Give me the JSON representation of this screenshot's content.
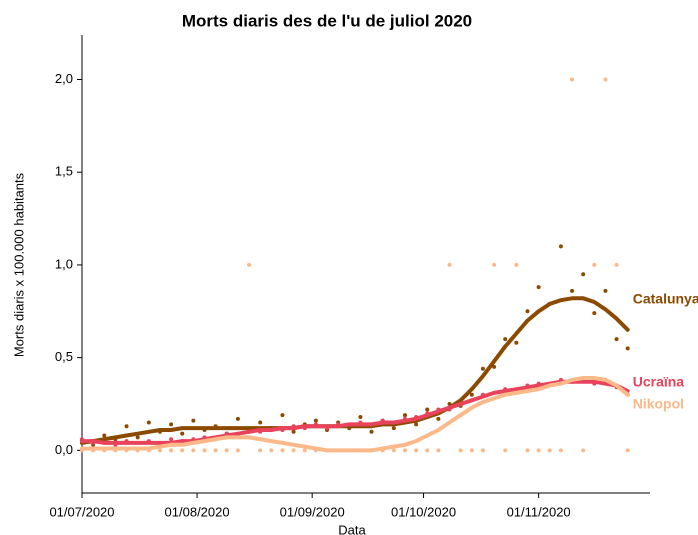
{
  "chart_data": {
    "type": "scatter",
    "title": "Morts diaris des de l'u de juliol 2020",
    "xlabel": "Data",
    "ylabel": "Morts diaris x 100.000 habitants",
    "x": [
      "2020-07-01",
      "2020-07-04",
      "2020-07-07",
      "2020-07-10",
      "2020-07-13",
      "2020-07-16",
      "2020-07-19",
      "2020-07-22",
      "2020-07-25",
      "2020-07-28",
      "2020-07-31",
      "2020-08-03",
      "2020-08-06",
      "2020-08-09",
      "2020-08-12",
      "2020-08-15",
      "2020-08-18",
      "2020-08-21",
      "2020-08-24",
      "2020-08-27",
      "2020-08-30",
      "2020-09-02",
      "2020-09-05",
      "2020-09-08",
      "2020-09-11",
      "2020-09-14",
      "2020-09-17",
      "2020-09-20",
      "2020-09-23",
      "2020-09-26",
      "2020-09-29",
      "2020-10-02",
      "2020-10-05",
      "2020-10-08",
      "2020-10-11",
      "2020-10-14",
      "2020-10-17",
      "2020-10-20",
      "2020-10-23",
      "2020-10-26",
      "2020-10-29",
      "2020-11-01",
      "2020-11-04",
      "2020-11-07",
      "2020-11-10",
      "2020-11-13",
      "2020-11-16",
      "2020-11-19",
      "2020-11-22",
      "2020-11-25"
    ],
    "series": [
      {
        "name": "Catalunya",
        "color": "#8b4a00",
        "values": [
          0.05,
          0.03,
          0.08,
          0.06,
          0.13,
          0.07,
          0.15,
          0.1,
          0.14,
          0.09,
          0.16,
          0.11,
          0.13,
          0.09,
          0.17,
          0.1,
          0.15,
          0.12,
          0.19,
          0.1,
          0.14,
          0.16,
          0.11,
          0.15,
          0.12,
          0.18,
          0.1,
          0.16,
          0.12,
          0.19,
          0.14,
          0.22,
          0.17,
          0.25,
          0.24,
          0.3,
          0.44,
          0.45,
          0.6,
          0.58,
          0.75,
          0.88,
          0.79,
          1.1,
          0.86,
          0.95,
          0.74,
          0.86,
          0.6,
          0.55
        ],
        "trend": [
          0.04,
          0.05,
          0.06,
          0.07,
          0.08,
          0.09,
          0.1,
          0.11,
          0.11,
          0.12,
          0.12,
          0.12,
          0.12,
          0.12,
          0.12,
          0.12,
          0.12,
          0.12,
          0.12,
          0.12,
          0.13,
          0.13,
          0.13,
          0.13,
          0.13,
          0.13,
          0.13,
          0.14,
          0.14,
          0.15,
          0.16,
          0.18,
          0.2,
          0.23,
          0.27,
          0.33,
          0.4,
          0.48,
          0.56,
          0.63,
          0.7,
          0.75,
          0.79,
          0.81,
          0.82,
          0.82,
          0.8,
          0.76,
          0.71,
          0.65
        ]
      },
      {
        "name": "Ucraïna",
        "color": "#e8435a",
        "values": [
          0.06,
          0.04,
          0.05,
          0.03,
          0.05,
          0.04,
          0.05,
          0.03,
          0.06,
          0.05,
          0.06,
          0.07,
          0.06,
          0.09,
          0.08,
          0.11,
          0.1,
          0.12,
          0.11,
          0.13,
          0.12,
          0.14,
          0.12,
          0.14,
          0.13,
          0.15,
          0.13,
          0.16,
          0.15,
          0.17,
          0.18,
          0.2,
          0.22,
          0.22,
          0.26,
          0.27,
          0.3,
          0.31,
          0.33,
          0.32,
          0.35,
          0.36,
          0.35,
          0.38,
          0.37,
          0.39,
          0.36,
          0.38,
          0.34,
          0.3
        ],
        "trend": [
          0.05,
          0.05,
          0.04,
          0.04,
          0.04,
          0.04,
          0.04,
          0.04,
          0.04,
          0.05,
          0.05,
          0.06,
          0.07,
          0.08,
          0.09,
          0.1,
          0.11,
          0.11,
          0.12,
          0.12,
          0.13,
          0.13,
          0.13,
          0.13,
          0.14,
          0.14,
          0.14,
          0.15,
          0.15,
          0.16,
          0.17,
          0.19,
          0.21,
          0.23,
          0.25,
          0.27,
          0.29,
          0.31,
          0.32,
          0.33,
          0.34,
          0.35,
          0.36,
          0.37,
          0.37,
          0.37,
          0.37,
          0.36,
          0.35,
          0.32
        ]
      },
      {
        "name": "Nikopol",
        "color": "#fbb98a",
        "values": [
          0,
          0,
          0,
          0,
          0,
          0,
          0,
          0,
          0,
          0,
          0,
          0,
          0,
          0,
          0,
          1.0,
          0,
          0,
          0,
          0,
          0,
          0,
          0,
          0,
          0,
          0,
          0,
          0,
          0,
          0,
          0,
          0,
          0,
          1.0,
          0,
          0,
          0,
          1.0,
          0,
          1.0,
          0,
          0,
          0,
          0,
          2.0,
          0,
          1.0,
          2.0,
          1.0,
          0
        ],
        "trend": [
          0.01,
          0.01,
          0.01,
          0.01,
          0.01,
          0.01,
          0.01,
          0.02,
          0.03,
          0.03,
          0.04,
          0.05,
          0.06,
          0.07,
          0.07,
          0.07,
          0.06,
          0.05,
          0.04,
          0.03,
          0.02,
          0.01,
          0.0,
          0.0,
          0.0,
          0.0,
          0.0,
          0.01,
          0.02,
          0.03,
          0.05,
          0.08,
          0.11,
          0.15,
          0.19,
          0.23,
          0.26,
          0.28,
          0.3,
          0.31,
          0.32,
          0.33,
          0.35,
          0.36,
          0.38,
          0.39,
          0.39,
          0.38,
          0.35,
          0.3
        ]
      }
    ],
    "xlim": [
      "2020-07-01",
      "2020-12-01"
    ],
    "xticks": [
      {
        "value": "2020-07-01",
        "label": "01/07/2020"
      },
      {
        "value": "2020-08-01",
        "label": "01/08/2020"
      },
      {
        "value": "2020-09-01",
        "label": "01/09/2020"
      },
      {
        "value": "2020-10-01",
        "label": "01/10/2020"
      },
      {
        "value": "2020-11-01",
        "label": "01/11/2020"
      }
    ],
    "ylim": [
      -0.23,
      2.24
    ],
    "yticks": [
      {
        "value": 0,
        "label": "0,0"
      },
      {
        "value": 0.5,
        "label": "0,5"
      },
      {
        "value": 1,
        "label": "1,0"
      },
      {
        "value": 1.5,
        "label": "1,5"
      },
      {
        "value": 2,
        "label": "2,0"
      }
    ]
  }
}
